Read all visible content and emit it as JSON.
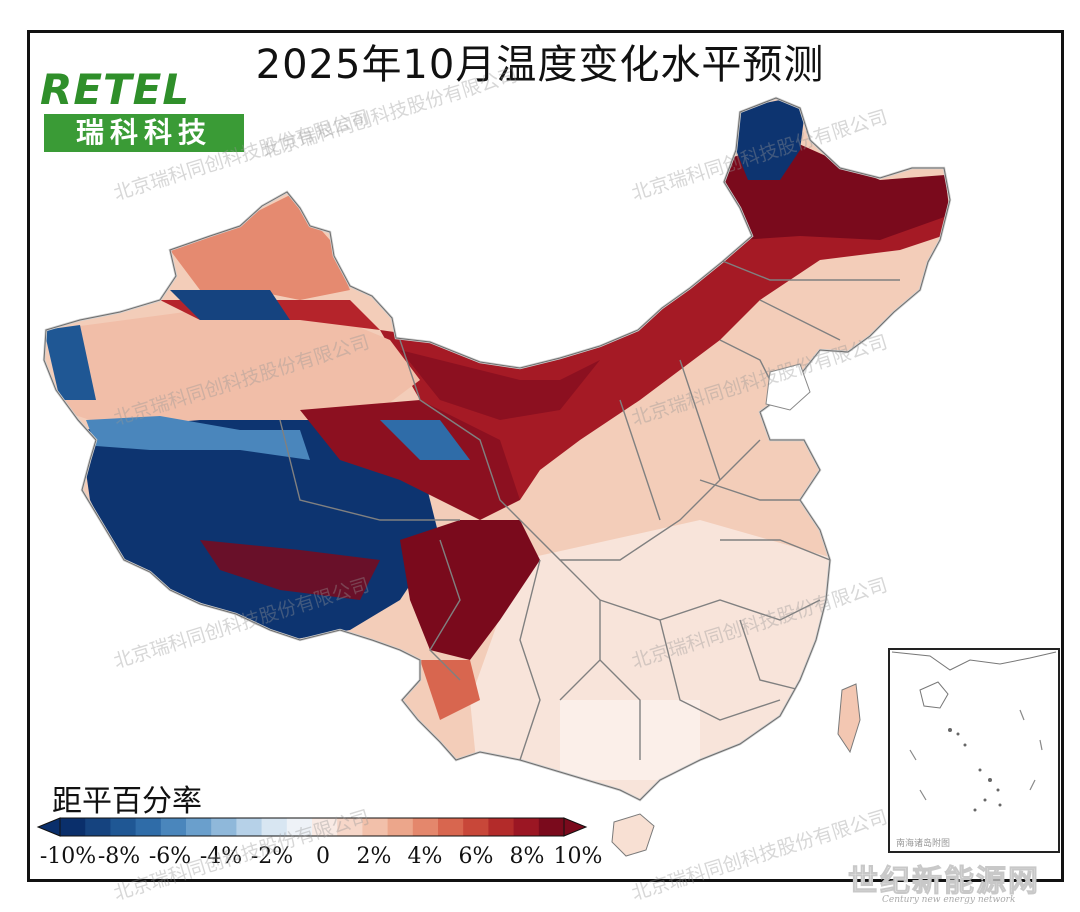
{
  "map": {
    "title": "2025年10月温度变化水平预测",
    "legend_title": "距平百分率",
    "logo": {
      "brand": "RETEL",
      "sub": "瑞科科技"
    },
    "watermarks": [
      "北京瑞科同创科技股份有限公司",
      "北京瑞科同创科技股份有限公司",
      "北京瑞科同创科技股份有限公司",
      "北京瑞科同创科技股份有限公司",
      "北京瑞科同创科技股份有限公司",
      "北京瑞科同创科技股份有限公司",
      "北京瑞科同创科技股份有限公司",
      "北京瑞科同创科技股份有限公司",
      "北京瑞科同创科技股份有限公司"
    ],
    "colorbar": {
      "ticks": [
        "-10%",
        "-8%",
        "-6%",
        "-4%",
        "-2%",
        "0",
        "2%",
        "4%",
        "6%",
        "8%",
        "10%"
      ],
      "colors": [
        "#0a2f6b",
        "#15437f",
        "#1f5794",
        "#2f6ca8",
        "#4a86bc",
        "#6a9fcc",
        "#8fb8da",
        "#b6d1e8",
        "#d8e6f2",
        "#eef2f7",
        "#f9eae4",
        "#f6d6c8",
        "#f2c0aa",
        "#eca68b",
        "#e4876c",
        "#d8664f",
        "#c84739",
        "#b32b2a",
        "#9b1623",
        "#7a0a1c"
      ]
    },
    "inset_caption": "南海诸岛附图",
    "corner_mark": "世纪新能源网",
    "corner_sub": "Century new energy network"
  }
}
